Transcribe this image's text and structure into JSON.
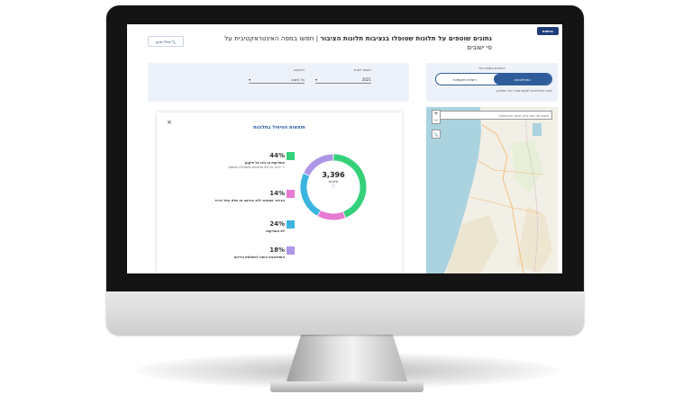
{
  "header": {
    "logo_label": "נגישות",
    "title": "נתונים שוטפים על תלונות שטופלו בנציבות תלונות הציבור",
    "title_sub": " | חפשו במפה האינטראקטיבית על פי ישובים",
    "help_label": "מלל מנוע"
  },
  "toggle": {
    "caption": "הנתונים מוצגים לפי",
    "options": [
      "המתלוננים",
      "רשויות מקומיות"
    ],
    "note": "הצגה המתייחסת למקום מגוריו של המתלונן"
  },
  "filters": {
    "year": {
      "label": "נתונים לשנת",
      "value": "2021"
    },
    "period": {
      "label": "לתקופה",
      "value": "כל השנה"
    }
  },
  "results": {
    "title": "תוצאות הטיפול בתלונות",
    "close": "×",
    "total": "3,396",
    "total_caption": "תלונות",
    "info_icon": "info-icon"
  },
  "chart_data": {
    "type": "pie",
    "categories": [
      "מוצדקות או באו על תיקונן",
      "הבירור הסתיים ללא הכרעה או שלא החל בירור",
      "לא מוצדקות",
      "המתלוננים הופנו להשלמת הליכים"
    ],
    "values": [
      44,
      14,
      24,
      18
    ],
    "labels": [
      "44%",
      "14%",
      "24%",
      "18%"
    ],
    "notes": [
      "+ יירדה על 5% מתלונות המקבילה אשתקד",
      "",
      "",
      ""
    ],
    "colors": [
      "#34d07a",
      "#e77ad2",
      "#3bb5e0",
      "#ae96e6"
    ],
    "title": "תוצאות הטיפול בתלונות"
  },
  "map": {
    "search_placeholder": "חיפוש לפי ישוב (ניתן לבחור מהרשימה)",
    "zoom_in": "+",
    "zoom_out": "−",
    "search_icon": "magnifier-icon"
  }
}
